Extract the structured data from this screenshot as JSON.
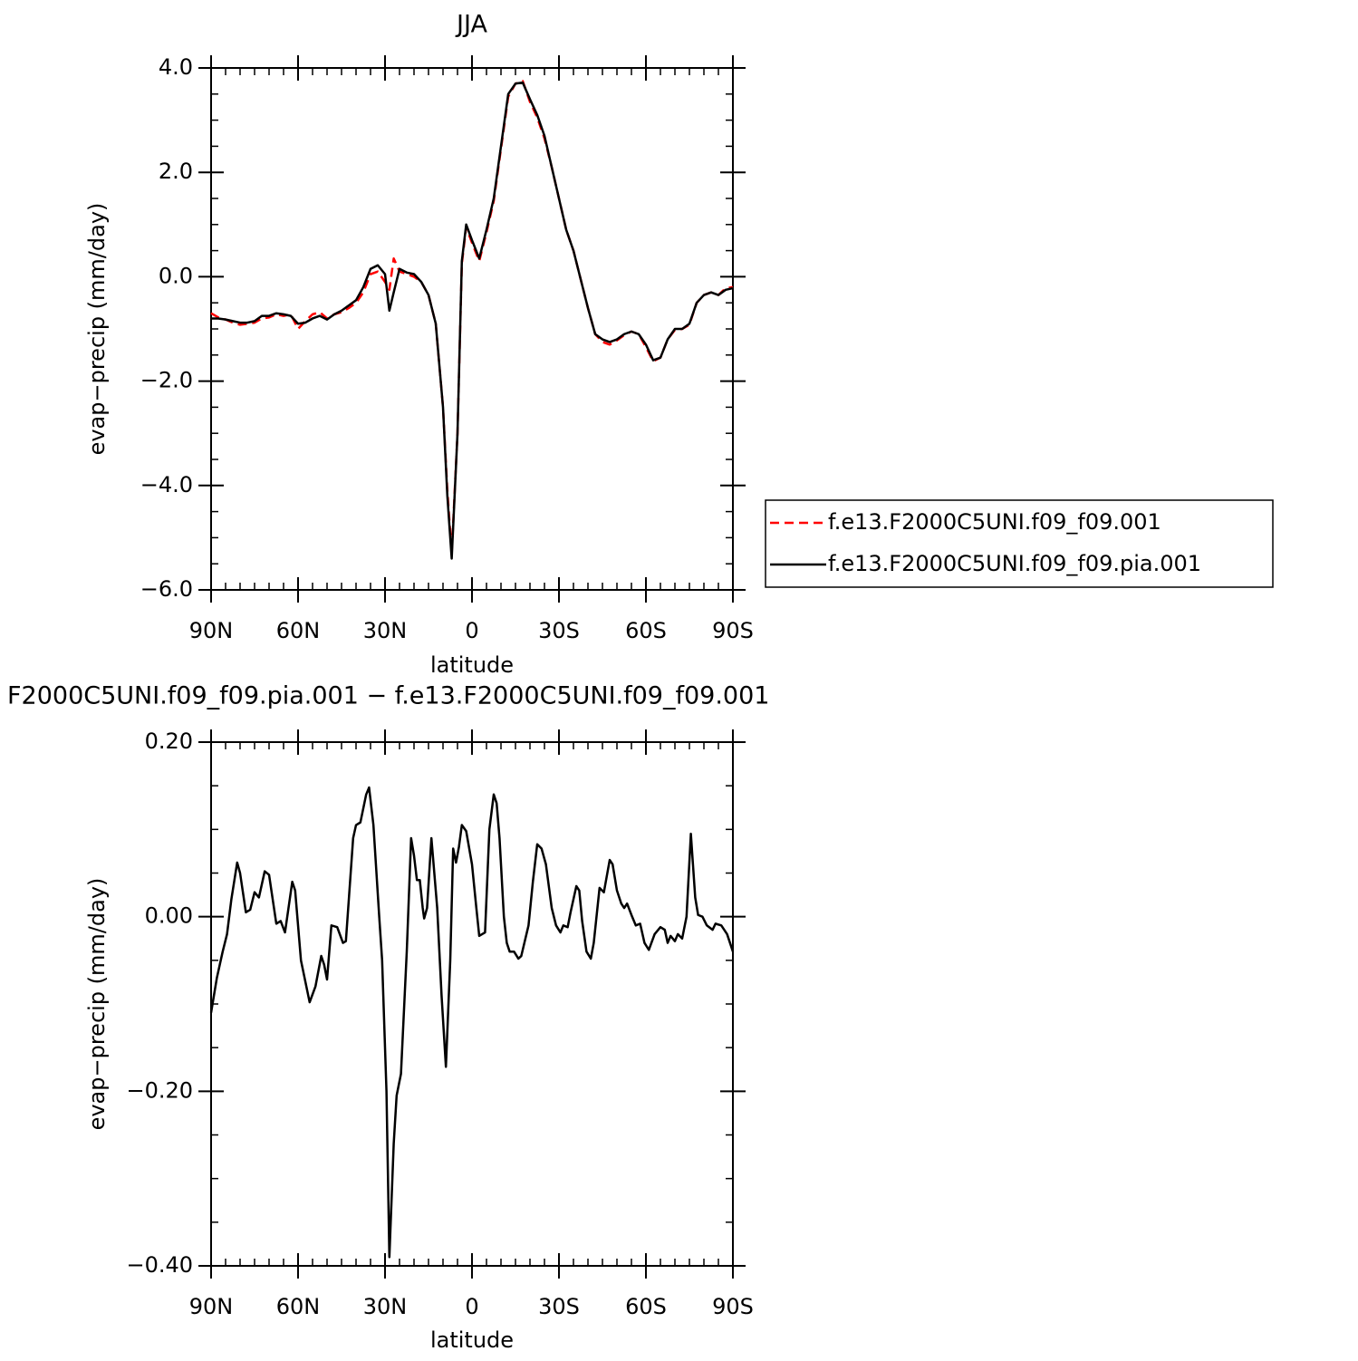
{
  "chart_data": [
    {
      "type": "line",
      "title": "JJA",
      "x_label": "latitude",
      "y_label": "evap−precip (mm/day)",
      "x": [
        90,
        87.5,
        85,
        82.5,
        80,
        77.5,
        75,
        72.5,
        70,
        67.5,
        65,
        62.5,
        60,
        57.5,
        55,
        52.5,
        50,
        47.5,
        45,
        42.5,
        40,
        37.5,
        35,
        32.5,
        30,
        28.5,
        27,
        25,
        22.5,
        20,
        17.5,
        15,
        12.5,
        10,
        8.5,
        7,
        5,
        3.5,
        2,
        0,
        -2.5,
        -5,
        -7.5,
        -10,
        -12.5,
        -15,
        -17.5,
        -20,
        -22.5,
        -25,
        -27.5,
        -30,
        -32.5,
        -35,
        -37.5,
        -40,
        -42.5,
        -45,
        -47.5,
        -50,
        -52.5,
        -55,
        -57.5,
        -60,
        -62.5,
        -65,
        -67.5,
        -70,
        -72.5,
        -75,
        -77.5,
        -80,
        -82.5,
        -85,
        -87.5,
        -90
      ],
      "series": [
        {
          "name": "f.e13.F2000C5UNI.f09_f09.001",
          "color": "#ff0000",
          "dashed": true,
          "values": [
            -0.7,
            -0.78,
            -0.82,
            -0.88,
            -0.92,
            -0.9,
            -0.88,
            -0.8,
            -0.78,
            -0.72,
            -0.75,
            -0.72,
            -1.0,
            -0.85,
            -0.72,
            -0.68,
            -0.8,
            -0.72,
            -0.68,
            -0.6,
            -0.5,
            -0.3,
            0.05,
            0.1,
            -0.1,
            -0.25,
            0.35,
            0.1,
            0.05,
            0.0,
            -0.1,
            -0.35,
            -0.9,
            -2.5,
            -4.1,
            -5.3,
            -3.0,
            0.25,
            0.95,
            0.65,
            0.3,
            0.85,
            1.45,
            2.45,
            3.45,
            3.7,
            3.75,
            3.35,
            3.05,
            2.65,
            2.1,
            1.5,
            0.9,
            0.5,
            -0.05,
            -0.6,
            -1.1,
            -1.25,
            -1.3,
            -1.22,
            -1.12,
            -1.05,
            -1.1,
            -1.35,
            -1.62,
            -1.55,
            -1.2,
            -1.02,
            -1.0,
            -0.92,
            -0.5,
            -0.35,
            -0.3,
            -0.35,
            -0.22,
            -0.2
          ]
        },
        {
          "name": "f.e13.F2000C5UNI.f09_f09.pia.001",
          "color": "#000000",
          "dashed": false,
          "values": [
            -0.8,
            -0.8,
            -0.82,
            -0.85,
            -0.88,
            -0.88,
            -0.85,
            -0.75,
            -0.75,
            -0.7,
            -0.72,
            -0.75,
            -0.9,
            -0.88,
            -0.8,
            -0.75,
            -0.82,
            -0.72,
            -0.65,
            -0.55,
            -0.45,
            -0.2,
            0.15,
            0.22,
            0.05,
            -0.65,
            -0.3,
            0.15,
            0.08,
            0.05,
            -0.1,
            -0.35,
            -0.9,
            -2.5,
            -4.2,
            -5.4,
            -3.0,
            0.3,
            1.0,
            0.7,
            0.35,
            0.9,
            1.5,
            2.5,
            3.5,
            3.7,
            3.72,
            3.4,
            3.1,
            2.7,
            2.1,
            1.5,
            0.9,
            0.5,
            -0.05,
            -0.6,
            -1.1,
            -1.2,
            -1.25,
            -1.2,
            -1.1,
            -1.05,
            -1.1,
            -1.3,
            -1.6,
            -1.55,
            -1.2,
            -1.0,
            -1.0,
            -0.9,
            -0.5,
            -0.35,
            -0.3,
            -0.35,
            -0.25,
            -0.22
          ]
        }
      ],
      "xlim": [
        90,
        -90
      ],
      "xticks": [
        {
          "value": 90,
          "label": "90N"
        },
        {
          "value": 60,
          "label": "60N"
        },
        {
          "value": 30,
          "label": "30N"
        },
        0,
        {
          "value": -30,
          "label": "30S"
        },
        {
          "value": -60,
          "label": "60S"
        },
        {
          "value": -90,
          "label": "90S"
        }
      ],
      "xminorticks": [
        85,
        80,
        75,
        70,
        65,
        55,
        50,
        45,
        40,
        35,
        25,
        20,
        15,
        10,
        5,
        -5,
        -10,
        -15,
        -20,
        -25,
        -35,
        -40,
        -45,
        -50,
        -55,
        -65,
        -70,
        -75,
        -80,
        -85
      ],
      "ylim": [
        -6,
        4
      ],
      "yticks": [
        {
          "value": -6,
          "label": "−6.0"
        },
        {
          "value": -4,
          "label": "−4.0"
        },
        {
          "value": -2,
          "label": "−2.0"
        },
        {
          "value": 0,
          "label": "0.0"
        },
        {
          "value": 2,
          "label": "2.0"
        },
        {
          "value": 4,
          "label": "4.0"
        }
      ],
      "yminorticks": [
        -5.5,
        -5,
        -4.5,
        -3.5,
        -3,
        -2.5,
        -1.5,
        -1,
        -0.5,
        0.5,
        1,
        1.5,
        2.5,
        3,
        3.5
      ],
      "legend": "right"
    },
    {
      "type": "line",
      "title": "F2000C5UNI.f09_f09.pia.001 − f.e13.F2000C5UNI.f09_f09.001",
      "x_label": "latitude",
      "y_label": "evap−precip (mm/day)",
      "x": [
        90,
        88,
        86,
        84.5,
        83,
        81,
        80,
        78,
        76.5,
        75,
        73.5,
        71.5,
        70,
        67.5,
        66,
        64.5,
        62,
        61,
        59,
        56,
        54,
        52,
        51,
        50,
        48.5,
        46.5,
        44.5,
        43.5,
        41,
        40,
        38.5,
        36.5,
        35.5,
        34,
        32,
        31,
        29.5,
        28.5,
        27,
        26,
        24.5,
        22.5,
        21,
        20,
        19,
        18,
        17,
        16.5,
        15.5,
        14,
        12,
        10.5,
        9,
        7.5,
        6.5,
        5.5,
        4.5,
        3.5,
        2,
        0,
        -1.5,
        -2.5,
        -4.5,
        -6,
        -7.5,
        -8.5,
        -9.5,
        -11,
        -12,
        -13,
        -14.5,
        -16,
        -17,
        -19.5,
        -21,
        -22.5,
        -24,
        -25.5,
        -27.5,
        -29,
        -30.5,
        -31.5,
        -33,
        -34,
        -36,
        -37,
        -38,
        -39.5,
        -41,
        -42,
        -44,
        -45.5,
        -47.5,
        -48.5,
        -50,
        -51.5,
        -52.5,
        -53.5,
        -55,
        -56.5,
        -58,
        -59.5,
        -61,
        -63,
        -65,
        -66.5,
        -67.5,
        -68.5,
        -70,
        -71,
        -72.5,
        -74,
        -75.5,
        -77,
        -78,
        -79.5,
        -81,
        -83,
        -84,
        -86,
        -88,
        -90
      ],
      "series": [
        {
          "color": "#000000",
          "dashed": false,
          "values": [
            -0.11,
            -0.07,
            -0.04,
            -0.02,
            0.02,
            0.062,
            0.05,
            0.005,
            0.008,
            0.028,
            0.022,
            0.052,
            0.048,
            -0.008,
            -0.005,
            -0.018,
            0.04,
            0.03,
            -0.05,
            -0.098,
            -0.08,
            -0.045,
            -0.055,
            -0.072,
            -0.01,
            -0.012,
            -0.03,
            -0.028,
            0.09,
            0.105,
            0.108,
            0.14,
            0.148,
            0.105,
            0.0,
            -0.05,
            -0.2,
            -0.39,
            -0.26,
            -0.205,
            -0.18,
            -0.04,
            0.09,
            0.07,
            0.042,
            0.042,
            0.01,
            -0.002,
            0.01,
            0.09,
            0.01,
            -0.09,
            -0.172,
            -0.05,
            0.078,
            0.062,
            0.08,
            0.105,
            0.098,
            0.06,
            0.01,
            -0.022,
            -0.018,
            0.1,
            0.14,
            0.13,
            0.09,
            0.0,
            -0.03,
            -0.04,
            -0.04,
            -0.048,
            -0.045,
            -0.01,
            0.04,
            0.083,
            0.078,
            0.06,
            0.01,
            -0.01,
            -0.018,
            -0.01,
            -0.012,
            0.005,
            0.035,
            0.03,
            -0.005,
            -0.04,
            -0.048,
            -0.03,
            0.033,
            0.028,
            0.065,
            0.06,
            0.03,
            0.015,
            0.01,
            0.015,
            0.002,
            -0.01,
            -0.008,
            -0.03,
            -0.038,
            -0.02,
            -0.012,
            -0.015,
            -0.03,
            -0.022,
            -0.028,
            -0.02,
            -0.025,
            0.0,
            0.095,
            0.022,
            0.002,
            0.0,
            -0.01,
            -0.015,
            -0.008,
            -0.01,
            -0.02,
            -0.04
          ]
        }
      ],
      "xlim": [
        90,
        -90
      ],
      "xticks": [
        {
          "value": 90,
          "label": "90N"
        },
        {
          "value": 60,
          "label": "60N"
        },
        {
          "value": 30,
          "label": "30N"
        },
        0,
        {
          "value": -30,
          "label": "30S"
        },
        {
          "value": -60,
          "label": "60S"
        },
        {
          "value": -90,
          "label": "90S"
        }
      ],
      "xminorticks": [
        85,
        80,
        75,
        70,
        65,
        55,
        50,
        45,
        40,
        35,
        25,
        20,
        15,
        10,
        5,
        -5,
        -10,
        -15,
        -20,
        -25,
        -35,
        -40,
        -45,
        -50,
        -55,
        -65,
        -70,
        -75,
        -80,
        -85
      ],
      "ylim": [
        -0.4,
        0.2
      ],
      "yticks": [
        {
          "value": -0.4,
          "label": "−0.40"
        },
        {
          "value": -0.2,
          "label": "−0.20"
        },
        {
          "value": 0,
          "label": "0.00"
        },
        {
          "value": 0.2,
          "label": "0.20"
        }
      ],
      "yminorticks": [
        -0.35,
        -0.3,
        -0.25,
        -0.15,
        -0.1,
        -0.05,
        0.05,
        0.1,
        0.15
      ]
    }
  ]
}
